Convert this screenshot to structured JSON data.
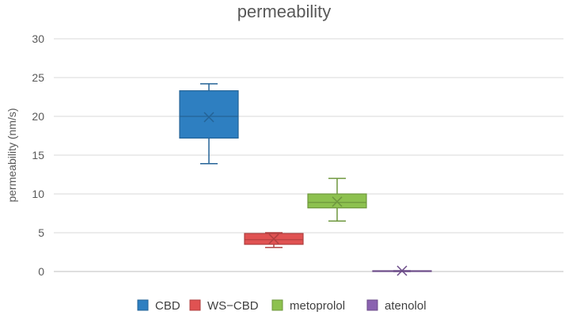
{
  "chart_data": {
    "type": "box",
    "title": "permeability",
    "ylabel": "permeability  (nm/s)",
    "xlabel": "",
    "ylim": [
      0,
      30
    ],
    "yticks": [
      0,
      5,
      10,
      15,
      20,
      25,
      30
    ],
    "grid": true,
    "legend_position": "bottom",
    "series": [
      {
        "name": "CBD",
        "color": "#2e7fc1",
        "min": 13.9,
        "q1": 17.2,
        "median": 20.0,
        "q3": 23.3,
        "max": 24.2,
        "mean": 19.9
      },
      {
        "name": "WS−CBD",
        "color": "#e05252",
        "min": 3.1,
        "q1": 3.5,
        "median": 4.1,
        "q3": 4.9,
        "max": 5.0,
        "mean": 4.2
      },
      {
        "name": "metoprolol",
        "color": "#8dc14f",
        "min": 6.5,
        "q1": 8.2,
        "median": 8.9,
        "q3": 10.0,
        "max": 12.0,
        "mean": 9.0
      },
      {
        "name": "atenolol",
        "color": "#8a62b0",
        "min": 0.0,
        "q1": 0.0,
        "median": 0.05,
        "q3": 0.1,
        "max": 0.1,
        "mean": 0.1
      }
    ]
  }
}
